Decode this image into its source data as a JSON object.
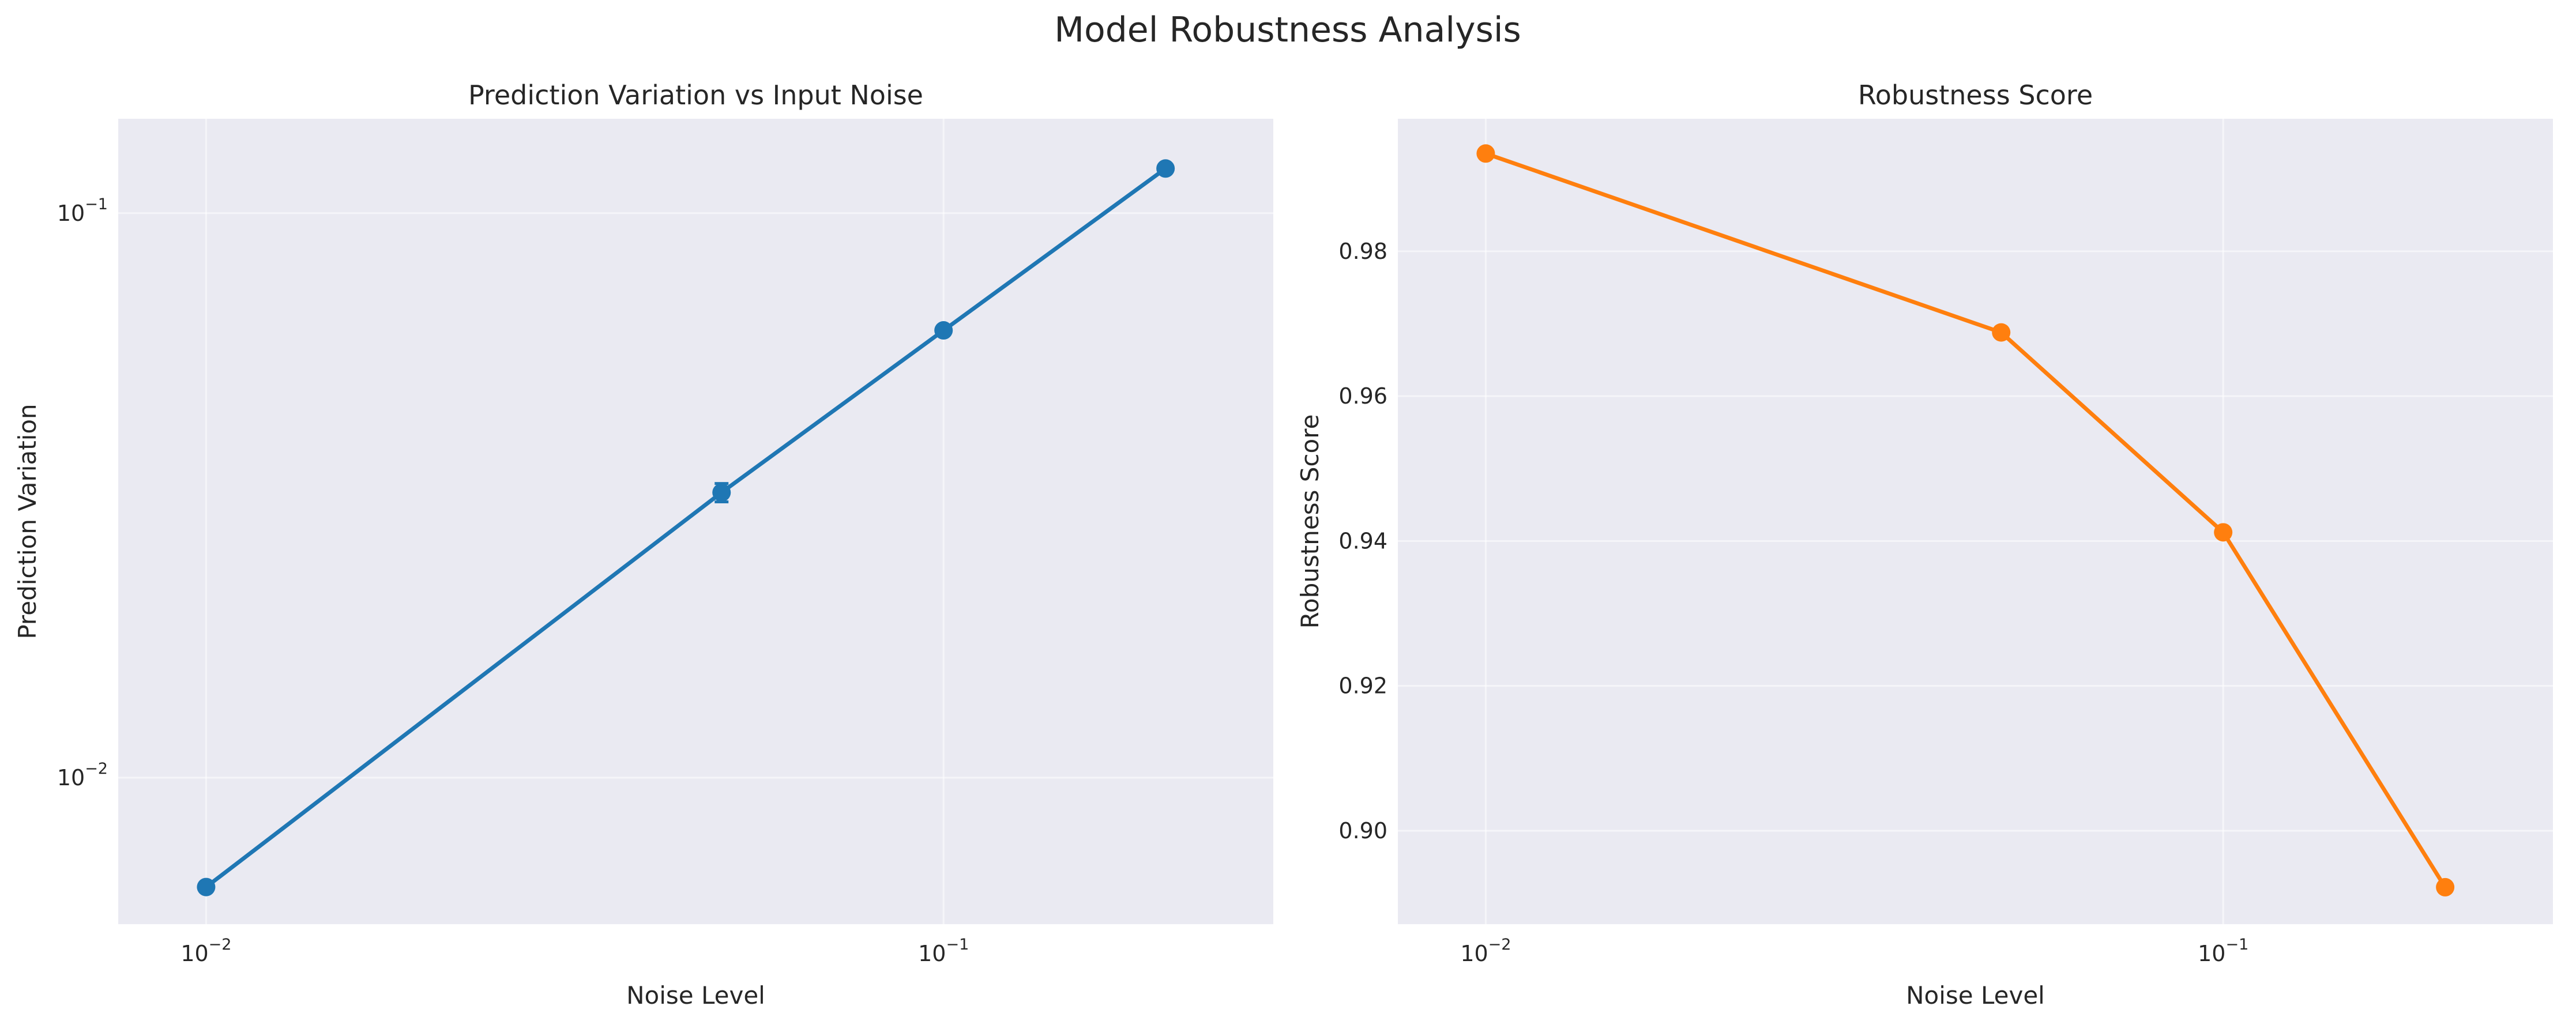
{
  "figure_title": "Model Robustness Analysis",
  "colors": {
    "series_blue": "#1f77b4",
    "series_orange": "#ff7f0e",
    "plot_background": "#eaeaf2",
    "grid": "#ffffff",
    "text": "#262626"
  },
  "chart_data": [
    {
      "type": "line",
      "title": "Prediction Variation vs Input Noise",
      "xlabel": "Noise Level",
      "ylabel": "Prediction Variation",
      "xscale": "log",
      "yscale": "log",
      "grid": true,
      "xlim": [
        0.0076,
        0.28
      ],
      "ylim": [
        0.0055,
        0.147
      ],
      "x_ticks": [
        {
          "value": 0.01,
          "base": "10",
          "exp": "−2"
        },
        {
          "value": 0.1,
          "base": "10",
          "exp": "−1"
        }
      ],
      "y_ticks": [
        {
          "value": 0.01,
          "base": "10",
          "exp": "−2"
        },
        {
          "value": 0.1,
          "base": "10",
          "exp": "−1"
        }
      ],
      "x": [
        0.01,
        0.05,
        0.1,
        0.2
      ],
      "series": [
        {
          "values": [
            0.0064,
            0.032,
            0.062,
            0.12
          ],
          "errors": [
            0.0001,
            0.0012,
            0.0008,
            0.0015
          ],
          "color": "#1f77b4"
        }
      ]
    },
    {
      "type": "line",
      "title": "Robustness Score",
      "xlabel": "Noise Level",
      "ylabel": "Robustness Score",
      "xscale": "log",
      "yscale": "linear",
      "grid": true,
      "xlim": [
        0.0076,
        0.28
      ],
      "ylim": [
        0.8871,
        0.9983
      ],
      "x_ticks": [
        {
          "value": 0.01,
          "base": "10",
          "exp": "−2"
        },
        {
          "value": 0.1,
          "base": "10",
          "exp": "−1"
        }
      ],
      "y_ticks": [
        {
          "value": 0.9,
          "label": "0.90"
        },
        {
          "value": 0.92,
          "label": "0.92"
        },
        {
          "value": 0.94,
          "label": "0.94"
        },
        {
          "value": 0.96,
          "label": "0.96"
        },
        {
          "value": 0.98,
          "label": "0.98"
        }
      ],
      "x": [
        0.01,
        0.05,
        0.1,
        0.2
      ],
      "series": [
        {
          "values": [
            0.9935,
            0.9688,
            0.9412,
            0.8922
          ],
          "color": "#ff7f0e"
        }
      ]
    }
  ]
}
